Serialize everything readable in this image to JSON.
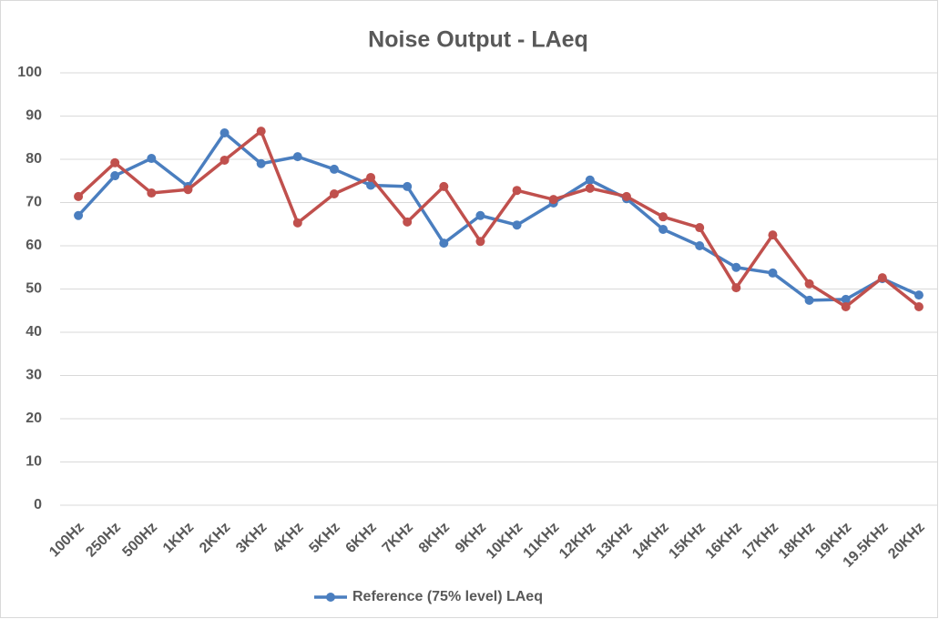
{
  "chart_data": {
    "type": "line",
    "title": "Noise Output - LAeq",
    "categories": [
      "100Hz",
      "250Hz",
      "500Hz",
      "1KHz",
      "2KHz",
      "3KHz",
      "4KHz",
      "5KHz",
      "6KHz",
      "7KHz",
      "8KHz",
      "9KHz",
      "10KHz",
      "11KHz",
      "12KHz",
      "13KHz",
      "14KHz",
      "15KHz",
      "16KHz",
      "17KHz",
      "18KHz",
      "19KHz",
      "19.5KHz",
      "20KHz"
    ],
    "series": [
      {
        "name": "Reference (75% level) LAeq",
        "color": "#4a7ebf",
        "values": [
          67,
          76.2,
          80.2,
          73.7,
          86.1,
          79,
          80.6,
          77.7,
          74,
          73.7,
          60.6,
          67,
          64.8,
          69.9,
          75.2,
          70.9,
          63.8,
          60,
          55,
          53.7,
          47.4,
          47.6,
          52.4,
          48.6
        ]
      },
      {
        "color": "#c0504d",
        "values": [
          71.4,
          79.2,
          72.2,
          73,
          79.8,
          86.5,
          65.3,
          72,
          75.8,
          65.5,
          73.7,
          61,
          72.8,
          70.7,
          73.3,
          71.4,
          66.7,
          64.2,
          50.3,
          62.5,
          51.2,
          45.9,
          52.6,
          45.9
        ]
      }
    ],
    "ylim": [
      0,
      100
    ],
    "yticks": [
      0,
      10,
      20,
      30,
      40,
      50,
      60,
      70,
      80,
      90,
      100
    ],
    "grid": true,
    "legend": "bottom"
  }
}
